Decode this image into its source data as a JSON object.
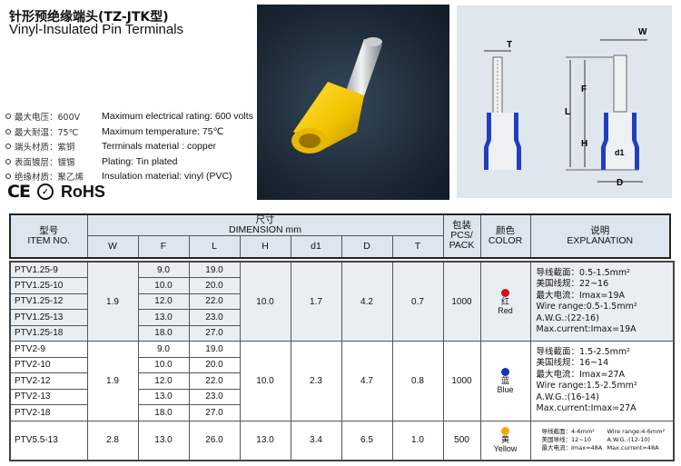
{
  "title_cn": "针形预绝缘端头(TZ-JTK型)",
  "title_en": "Vinyl-Insulated Pin Terminals",
  "specs": [
    {
      "cn": "最大电压：600V",
      "en": "Maximum electrical rating: 600 volts"
    },
    {
      "cn": "最大耐温：75℃",
      "en": "Maximum temperature: 75℃"
    },
    {
      "cn": "端头材质：紫铜",
      "en": "Terminals material : copper"
    },
    {
      "cn": "表面镀层：镀锡",
      "en": "Plating: Tin plated"
    },
    {
      "cn": "绝缘材质：聚乙烯",
      "en": "Insulation material: vinyl (PVC)"
    }
  ],
  "certs": {
    "ce": "CE",
    "cqc": "CQC",
    "rohs": "RoHS"
  },
  "diagram": {
    "labels": [
      "T",
      "W",
      "F",
      "L",
      "H",
      "d1",
      "D"
    ],
    "insulation_color": "#1f3fc0"
  },
  "photo": {
    "terminal_color": "#f2c200"
  },
  "table": {
    "header": {
      "item_cn": "型号",
      "item_en": "ITEM NO.",
      "dim_cn": "尺寸",
      "dim_en": "DIMENSION mm",
      "cols": [
        "W",
        "F",
        "L",
        "H",
        "d1",
        "D",
        "T"
      ],
      "pack_cn": "包装",
      "pack_en": "PCS/ PACK",
      "color_cn": "颜色",
      "color_en": "COLOR",
      "expl_cn": "说明",
      "expl_en": "EXPLANATION"
    },
    "groups": [
      {
        "W": "1.9",
        "H": "10.0",
        "d1": "1.7",
        "D": "4.2",
        "T": "0.7",
        "pack": "1000",
        "color_hex": "#d0101a",
        "color_cn": "红",
        "color_en": "Red",
        "rows": [
          {
            "item": "PTV1.25-9",
            "F": "9.0",
            "L": "19.0"
          },
          {
            "item": "PTV1.25-10",
            "F": "10.0",
            "L": "20.0"
          },
          {
            "item": "PTV1.25-12",
            "F": "12.0",
            "L": "22.0"
          },
          {
            "item": "PTV1.25-13",
            "F": "13.0",
            "L": "23.0"
          },
          {
            "item": "PTV1.25-18",
            "F": "18.0",
            "L": "27.0"
          }
        ],
        "explanation": [
          "导线截面：0.5-1.5mm²",
          "美国线规：22~16",
          "最大电流：Imax=19A",
          "Wire range:0.5-1.5mm²",
          "A.W.G.:(22-16)",
          "Max.current:Imax=19A"
        ]
      },
      {
        "W": "1.9",
        "H": "10.0",
        "d1": "2.3",
        "D": "4.7",
        "T": "0.8",
        "pack": "1000",
        "color_hex": "#1530c8",
        "color_cn": "蓝",
        "color_en": "Blue",
        "rows": [
          {
            "item": "PTV2-9",
            "F": "9.0",
            "L": "19.0"
          },
          {
            "item": "PTV2-10",
            "F": "10.0",
            "L": "20.0"
          },
          {
            "item": "PTV2-12",
            "F": "12.0",
            "L": "22.0"
          },
          {
            "item": "PTV2-13",
            "F": "13.0",
            "L": "23.0"
          },
          {
            "item": "PTV2-18",
            "F": "18.0",
            "L": "27.0"
          }
        ],
        "explanation": [
          "导线截面：1.5-2.5mm²",
          "美国线规：16~14",
          "最大电流：Imax=27A",
          "Wire range:1.5-2.5mm²",
          "A.W.G.:(16-14)",
          "Max.current:Imax=27A"
        ]
      },
      {
        "W": "2.8",
        "H": "13.0",
        "d1": "3.4",
        "D": "6.5",
        "T": "1.0",
        "pack": "500",
        "color_hex": "#f5a800",
        "color_cn": "黄",
        "color_en": "Yellow",
        "rows": [
          {
            "item": "PTV5.5-13",
            "F": "13.0",
            "L": "26.0"
          }
        ],
        "explanation": [
          "导线截面：4-6mm²",
          "美国导线：12~10",
          "最大电流：Imax=48A",
          "Wire range:4-6mm²",
          "A.W.G.:(12-10)",
          "Max.current=48A"
        ]
      }
    ]
  }
}
